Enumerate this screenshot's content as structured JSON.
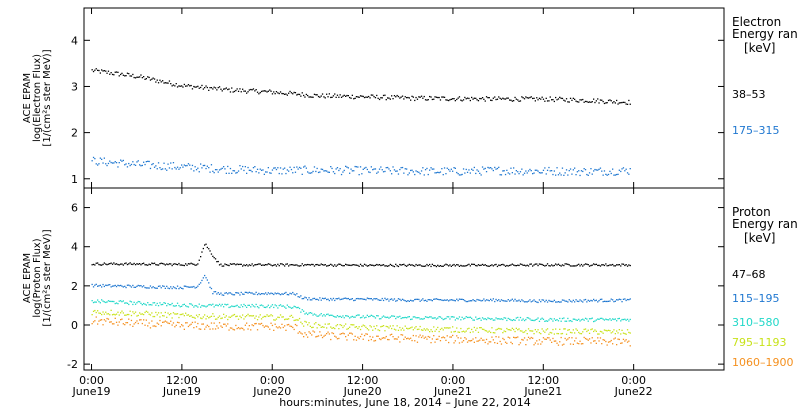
{
  "chart_data": [
    {
      "type": "scatter",
      "ylabel_lines": [
        "ACE EPAM",
        "log(Electron Flux)",
        "[1/(cm²s ster MeV)]"
      ],
      "ylim": [
        0.8,
        4.7
      ],
      "yticks": [
        1,
        2,
        3,
        4
      ],
      "legend_title": [
        "Electron",
        "Energy ran",
        "[keV]"
      ],
      "series": [
        {
          "name": "38–53",
          "color": "#000000",
          "x_hours": [
            0,
            6,
            12,
            18,
            24,
            30,
            36,
            42,
            48,
            54,
            60,
            66,
            71.5
          ],
          "y": [
            3.36,
            3.23,
            3.03,
            2.94,
            2.89,
            2.81,
            2.79,
            2.76,
            2.75,
            2.74,
            2.74,
            2.71,
            2.67
          ],
          "spread": 0.05
        },
        {
          "name": "175–315",
          "color": "#1f77d0",
          "x_hours": [
            0,
            6,
            12,
            18,
            24,
            30,
            36,
            42,
            48,
            54,
            60,
            66,
            71.5
          ],
          "y": [
            1.4,
            1.32,
            1.27,
            1.22,
            1.19,
            1.2,
            1.19,
            1.18,
            1.17,
            1.19,
            1.18,
            1.17,
            1.19
          ],
          "spread": 0.09
        }
      ]
    },
    {
      "type": "scatter",
      "ylabel_lines": [
        "ACE EPAM",
        "log(Proton Flux)",
        "[1/(cm²s ster MeV)]"
      ],
      "ylim": [
        -2.3,
        7.0
      ],
      "yticks": [
        -2,
        0,
        2,
        4,
        6
      ],
      "legend_title": [
        "Proton",
        "Energy ran",
        "[keV]"
      ],
      "series": [
        {
          "name": "47–68",
          "color": "#000000",
          "x_hours": [
            0,
            6,
            12,
            14,
            15,
            16,
            17,
            18,
            24,
            30,
            36,
            42,
            48,
            54,
            60,
            66,
            71.5
          ],
          "y": [
            3.15,
            3.15,
            3.12,
            3.15,
            4.2,
            3.6,
            3.1,
            3.1,
            3.1,
            3.1,
            3.08,
            3.08,
            3.08,
            3.08,
            3.1,
            3.1,
            3.1
          ],
          "spread": 0.06
        },
        {
          "name": "115–195",
          "color": "#1f77d0",
          "x_hours": [
            0,
            6,
            12,
            14,
            15,
            16,
            17,
            18,
            24,
            27,
            28,
            30,
            36,
            42,
            48,
            54,
            60,
            66,
            71.5
          ],
          "y": [
            2.05,
            2.0,
            1.95,
            2.0,
            2.6,
            1.7,
            1.62,
            1.62,
            1.65,
            1.62,
            1.4,
            1.35,
            1.35,
            1.3,
            1.3,
            1.3,
            1.25,
            1.28,
            1.3
          ],
          "spread": 0.07
        },
        {
          "name": "310–580",
          "color": "#20d8c8",
          "x_hours": [
            0,
            6,
            12,
            18,
            24,
            27,
            28,
            30,
            36,
            42,
            48,
            54,
            60,
            66,
            71.5
          ],
          "y": [
            1.25,
            1.15,
            1.05,
            1.0,
            1.0,
            0.95,
            0.7,
            0.55,
            0.45,
            0.4,
            0.38,
            0.35,
            0.3,
            0.3,
            0.3
          ],
          "spread": 0.09
        },
        {
          "name": "795–1193",
          "color": "#c8e21a",
          "x_hours": [
            0,
            6,
            12,
            18,
            24,
            27,
            28,
            30,
            36,
            42,
            48,
            54,
            60,
            66,
            71.5
          ],
          "y": [
            0.7,
            0.62,
            0.5,
            0.45,
            0.42,
            0.4,
            0.1,
            0.0,
            -0.1,
            -0.15,
            -0.2,
            -0.25,
            -0.3,
            -0.3,
            -0.35
          ],
          "spread": 0.14
        },
        {
          "name": "1060–1900",
          "color": "#f5901e",
          "x_hours": [
            0,
            6,
            12,
            18,
            24,
            27,
            28,
            30,
            36,
            42,
            48,
            54,
            60,
            66,
            71.5
          ],
          "y": [
            0.25,
            0.12,
            0.0,
            -0.05,
            -0.05,
            -0.1,
            -0.4,
            -0.5,
            -0.6,
            -0.65,
            -0.7,
            -0.75,
            -0.8,
            -0.8,
            -0.85
          ],
          "spread": 0.2
        }
      ]
    }
  ],
  "x_axis": {
    "range_hours": [
      -1,
      84
    ],
    "ticks": [
      {
        "h": 0,
        "time": "0:00",
        "day": "June19"
      },
      {
        "h": 12,
        "time": "12:00",
        "day": "June19"
      },
      {
        "h": 24,
        "time": "0:00",
        "day": "June20"
      },
      {
        "h": 36,
        "time": "12:00",
        "day": "June20"
      },
      {
        "h": 48,
        "time": "0:00",
        "day": "June21"
      },
      {
        "h": 60,
        "time": "12:00",
        "day": "June21"
      },
      {
        "h": 72,
        "time": "0:00",
        "day": "June22"
      }
    ],
    "label": "hours:minutes, June 18, 2014 – June 22, 2014"
  }
}
